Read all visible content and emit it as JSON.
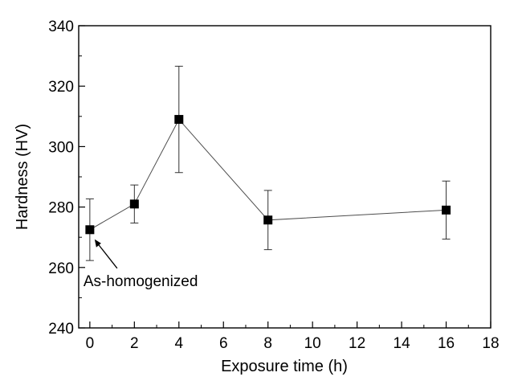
{
  "chart_data": {
    "type": "line",
    "title": "",
    "xlabel": "Exposure time (h)",
    "ylabel": "Hardness (HV)",
    "xlim": [
      -0.5,
      18
    ],
    "ylim": [
      240,
      340
    ],
    "xticks": [
      0,
      2,
      4,
      6,
      8,
      10,
      12,
      14,
      16,
      18
    ],
    "yticks": [
      240,
      260,
      280,
      300,
      320,
      340
    ],
    "grid": false,
    "legend": "none",
    "marker": "square",
    "color": "#000000",
    "series": [
      {
        "x": [
          0,
          2,
          4,
          8,
          16
        ],
        "y": [
          272.5,
          281,
          309,
          275.7,
          279
        ],
        "error": [
          10.2,
          6.3,
          17.6,
          9.8,
          9.6
        ]
      }
    ],
    "annotations": [
      {
        "text": "As-homogenized",
        "x": 0,
        "y": 272.5
      }
    ]
  }
}
